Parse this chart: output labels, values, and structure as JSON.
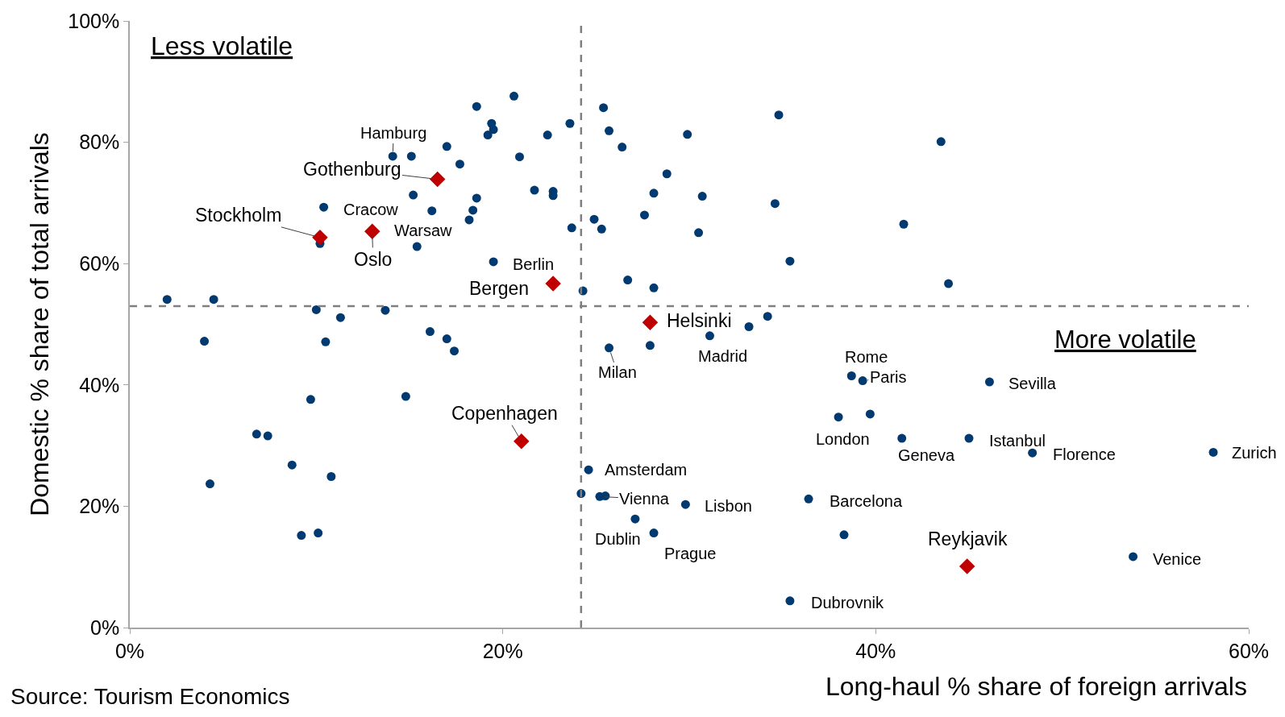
{
  "chart_data": {
    "type": "scatter",
    "xlabel": "Long-haul % share of foreign arrivals",
    "ylabel": "Domestic % share of total arrivals",
    "xlim": [
      0,
      60
    ],
    "ylim": [
      0,
      100
    ],
    "xticks": [
      {
        "value": 0,
        "label": "0%"
      },
      {
        "value": 20,
        "label": "20%"
      },
      {
        "value": 40,
        "label": "40%"
      },
      {
        "value": 60,
        "label": "60%"
      }
    ],
    "yticks": [
      {
        "value": 0,
        "label": "0%"
      },
      {
        "value": 20,
        "label": "20%"
      },
      {
        "value": 40,
        "label": "40%"
      },
      {
        "value": 60,
        "label": "60%"
      },
      {
        "value": 80,
        "label": "80%"
      },
      {
        "value": 100,
        "label": "100%"
      }
    ],
    "series": [
      {
        "marker": "circle",
        "color": "#003a70",
        "x": [
          2.0,
          4.5,
          4.0,
          4.3,
          6.8,
          7.4,
          8.7,
          9.2,
          9.7,
          10.1,
          10.0,
          10.5,
          10.8,
          11.3,
          10.2,
          10.4,
          13.7,
          14.1,
          15.1,
          15.2,
          15.4,
          14.8,
          16.1,
          16.2,
          17.0,
          17.0,
          17.4,
          17.7,
          18.2,
          18.4,
          18.6,
          18.6,
          19.2,
          19.4,
          19.5,
          19.5,
          20.6,
          20.9,
          21.7,
          22.4,
          22.7,
          22.7,
          23.6,
          23.7,
          24.3,
          24.9,
          25.3,
          25.4,
          25.7,
          26.4,
          26.7,
          27.6,
          28.1,
          28.1,
          28.8,
          29.9,
          30.7,
          30.5,
          34.8,
          34.6,
          35.4,
          43.5,
          41.5,
          43.9,
          25.7,
          27.9,
          31.1,
          33.2,
          34.2,
          38.7,
          39.3,
          46.1,
          39.7,
          38.0,
          41.4,
          45.0,
          48.4,
          58.1,
          24.6,
          24.2,
          25.2,
          25.5,
          29.8,
          27.1,
          28.1,
          36.4,
          38.3,
          53.8,
          35.4
        ],
        "values": [
          54.1,
          54.1,
          47.2,
          23.7,
          31.9,
          31.6,
          26.8,
          15.2,
          37.6,
          15.6,
          52.4,
          47.1,
          24.9,
          51.1,
          63.3,
          69.3,
          52.3,
          77.7,
          77.7,
          71.3,
          62.8,
          38.1,
          48.8,
          68.7,
          79.3,
          47.6,
          45.6,
          76.4,
          67.2,
          68.8,
          70.8,
          85.9,
          81.2,
          83.1,
          82.1,
          60.3,
          87.6,
          77.6,
          72.1,
          81.2,
          71.9,
          71.2,
          83.1,
          65.9,
          55.5,
          67.3,
          65.7,
          85.7,
          81.9,
          79.2,
          57.3,
          68.0,
          71.6,
          56.0,
          74.8,
          81.3,
          71.1,
          65.1,
          84.5,
          69.9,
          60.4,
          80.1,
          66.5,
          56.7,
          46.1,
          46.5,
          48.1,
          49.6,
          51.3,
          41.5,
          40.7,
          40.5,
          35.2,
          34.7,
          31.2,
          31.2,
          28.8,
          28.9,
          26.0,
          22.1,
          21.6,
          21.7,
          20.3,
          17.9,
          15.6,
          21.2,
          15.3,
          11.7,
          4.4
        ]
      },
      {
        "marker": "diamond",
        "color": "#c00000",
        "x": [
          10.2,
          13.0,
          16.5,
          22.7,
          27.9,
          21.0,
          44.9
        ],
        "values": [
          64.3,
          65.3,
          73.9,
          56.7,
          50.3,
          30.7,
          10.1
        ]
      }
    ],
    "ref_lines": [
      {
        "axis": "x",
        "value": 24.2,
        "color": "#7f7f7f",
        "line_style": "dashed"
      },
      {
        "axis": "y",
        "value": 53,
        "color": "#7f7f7f",
        "line_style": "dashed"
      }
    ],
    "annotations": [
      {
        "text": "Hamburg",
        "x": 14.1,
        "y": 77.7
      },
      {
        "text": "Gothenburg",
        "x": 16.5,
        "y": 73.9
      },
      {
        "text": "Stockholm",
        "x": 10.2,
        "y": 64.3
      },
      {
        "text": "Cracow",
        "x": 10.4,
        "y": 69.3
      },
      {
        "text": "Warsaw",
        "x": 15.4,
        "y": 62.8
      },
      {
        "text": "Oslo",
        "x": 13.0,
        "y": 65.3
      },
      {
        "text": "Berlin",
        "x": 19.5,
        "y": 60.3
      },
      {
        "text": "Bergen",
        "x": 22.7,
        "y": 56.7
      },
      {
        "text": "Helsinki",
        "x": 27.9,
        "y": 50.3
      },
      {
        "text": "Milan",
        "x": 25.7,
        "y": 46.1
      },
      {
        "text": "Madrid",
        "x": 31.1,
        "y": 48.1
      },
      {
        "text": "Rome",
        "x": 38.7,
        "y": 41.5
      },
      {
        "text": "Paris",
        "x": 39.3,
        "y": 40.7
      },
      {
        "text": "Sevilla",
        "x": 46.1,
        "y": 40.5
      },
      {
        "text": "London",
        "x": 38.0,
        "y": 34.7
      },
      {
        "text": "Geneva",
        "x": 41.4,
        "y": 31.2
      },
      {
        "text": "Istanbul",
        "x": 45.0,
        "y": 31.2
      },
      {
        "text": "Florence",
        "x": 48.4,
        "y": 28.8
      },
      {
        "text": "Zurich",
        "x": 58.1,
        "y": 28.9
      },
      {
        "text": "Copenhagen",
        "x": 21.0,
        "y": 30.7
      },
      {
        "text": "Amsterdam",
        "x": 24.6,
        "y": 26.0
      },
      {
        "text": "Vienna",
        "x": 25.2,
        "y": 21.6
      },
      {
        "text": "Lisbon",
        "x": 29.8,
        "y": 20.3
      },
      {
        "text": "Dublin",
        "x": 27.1,
        "y": 17.9
      },
      {
        "text": "Prague",
        "x": 28.1,
        "y": 15.6
      },
      {
        "text": "Barcelona",
        "x": 36.4,
        "y": 21.2
      },
      {
        "text": "Reykjavik",
        "x": 44.9,
        "y": 10.1
      },
      {
        "text": "Venice",
        "x": 53.8,
        "y": 11.7
      },
      {
        "text": "Dubrovnik",
        "x": 35.4,
        "y": 4.4
      },
      "Less volatile",
      "More volatile",
      "Source: Tourism Economics"
    ]
  }
}
